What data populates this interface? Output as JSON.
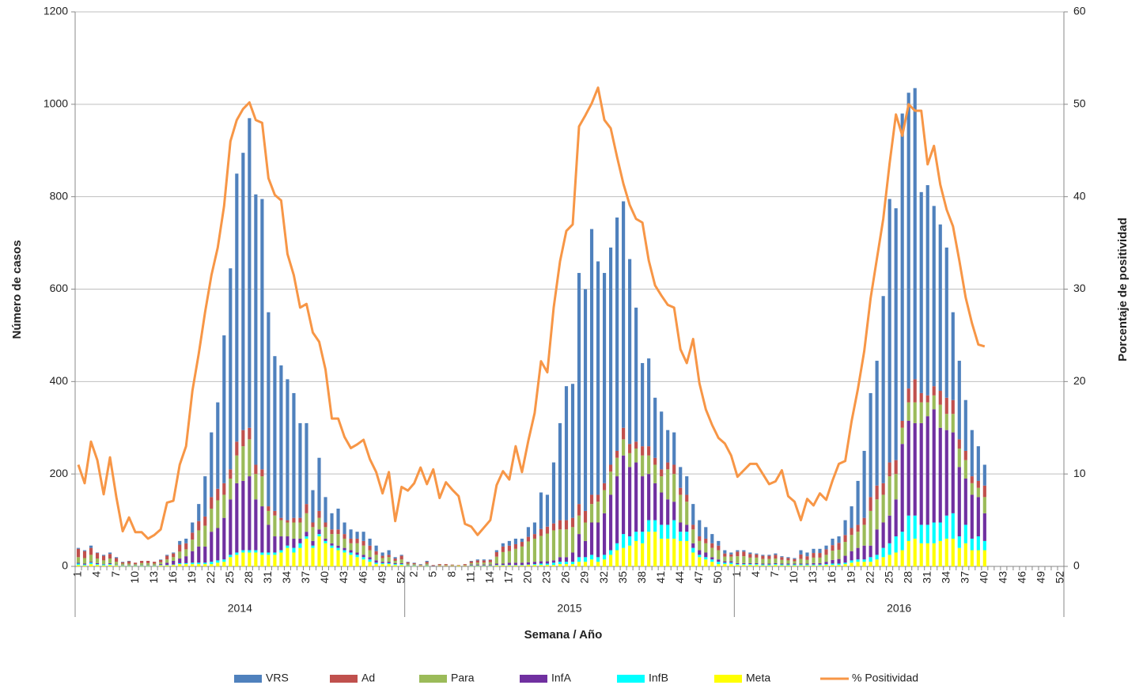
{
  "chart_data": {
    "type": "bar",
    "x_label": "Semana / Año",
    "y_label": "Número de casos",
    "y2_label": "Porcentaje de positividad",
    "ylim": [
      0,
      1200
    ],
    "yticks": [
      0,
      200,
      400,
      600,
      800,
      1000,
      1200
    ],
    "y2lim": [
      0,
      60
    ],
    "y2ticks": [
      0,
      10,
      20,
      30,
      40,
      50,
      60
    ],
    "grid": true,
    "legend": "bottom",
    "category_groups": [
      {
        "label": "2014",
        "count": 52
      },
      {
        "label": "2015",
        "count": 52
      },
      {
        "label": "2016",
        "count": 52
      }
    ],
    "categories": [
      "1",
      null,
      null,
      "4",
      null,
      null,
      "7",
      null,
      null,
      "10",
      null,
      null,
      "13",
      null,
      null,
      "16",
      null,
      null,
      "19",
      null,
      null,
      "22",
      null,
      null,
      "25",
      null,
      null,
      "28",
      null,
      null,
      "31",
      null,
      null,
      "34",
      null,
      null,
      "37",
      null,
      null,
      "40",
      null,
      null,
      "43",
      null,
      null,
      "46",
      null,
      null,
      "49",
      null,
      null,
      "52",
      null,
      "2",
      null,
      null,
      "5",
      null,
      null,
      "8",
      null,
      null,
      "11",
      null,
      null,
      "14",
      null,
      null,
      "17",
      null,
      null,
      "20",
      null,
      null,
      "23",
      null,
      null,
      "26",
      null,
      null,
      "29",
      null,
      null,
      "32",
      null,
      null,
      "35",
      null,
      null,
      "38",
      null,
      null,
      "41",
      null,
      null,
      "44",
      null,
      null,
      "47",
      null,
      null,
      "50",
      null,
      null,
      "1",
      null,
      null,
      "4",
      null,
      null,
      "7",
      null,
      null,
      "10",
      null,
      null,
      "13",
      null,
      null,
      "16",
      null,
      null,
      "19",
      null,
      null,
      "22",
      null,
      null,
      "25",
      null,
      null,
      "28",
      null,
      null,
      "31",
      null,
      null,
      "34",
      null,
      null,
      "37",
      null,
      null,
      "40",
      null,
      null,
      "43",
      null,
      null,
      "46",
      null,
      null,
      "49",
      null,
      null,
      "52"
    ],
    "series": [
      {
        "name": "VRS",
        "type": "bar",
        "color": "#4f81bd",
        "values": [
          2,
          2,
          5,
          1,
          2,
          3,
          2,
          1,
          1,
          0,
          0,
          0,
          0,
          1,
          2,
          2,
          8,
          10,
          22,
          37,
          87,
          140,
          187,
          320,
          435,
          580,
          600,
          670,
          585,
          585,
          420,
          335,
          330,
          305,
          270,
          205,
          175,
          70,
          115,
          55,
          35,
          45,
          25,
          20,
          15,
          20,
          15,
          12,
          7,
          10,
          3,
          2,
          1,
          1,
          1,
          2,
          0,
          0,
          0,
          0,
          0,
          0,
          1,
          2,
          2,
          1,
          4,
          7,
          10,
          12,
          7,
          21,
          25,
          79,
          69,
          132,
          210,
          290,
          290,
          500,
          480,
          575,
          505,
          455,
          470,
          505,
          490,
          400,
          290,
          180,
          190,
          130,
          125,
          70,
          70,
          45,
          40,
          45,
          35,
          25,
          20,
          10,
          7,
          4,
          3,
          3,
          3,
          2,
          2,
          2,
          3,
          2,
          2,
          2,
          9,
          8,
          9,
          9,
          8,
          14,
          14,
          32,
          47,
          95,
          145,
          225,
          270,
          405,
          570,
          545,
          665,
          640,
          630,
          435,
          455,
          390,
          360,
          325,
          190,
          170,
          110,
          100,
          75,
          45,
          null,
          null,
          null,
          null,
          null,
          null,
          null,
          null,
          null,
          null,
          null,
          null
        ]
      },
      {
        "name": "Ad",
        "type": "bar",
        "color": "#c0504d",
        "values": [
          18,
          15,
          15,
          12,
          10,
          10,
          8,
          3,
          5,
          3,
          5,
          5,
          4,
          5,
          8,
          8,
          15,
          13,
          15,
          20,
          20,
          25,
          25,
          25,
          20,
          30,
          35,
          25,
          20,
          15,
          10,
          10,
          5,
          5,
          10,
          10,
          20,
          10,
          15,
          10,
          10,
          10,
          10,
          10,
          10,
          10,
          10,
          8,
          5,
          5,
          5,
          8,
          3,
          2,
          1,
          4,
          1,
          2,
          2,
          1,
          1,
          2,
          4,
          5,
          5,
          5,
          10,
          12,
          12,
          10,
          10,
          10,
          10,
          15,
          15,
          15,
          20,
          20,
          20,
          25,
          25,
          20,
          15,
          15,
          15,
          15,
          25,
          20,
          15,
          20,
          20,
          15,
          15,
          15,
          20,
          15,
          15,
          10,
          10,
          10,
          10,
          10,
          7,
          5,
          10,
          10,
          8,
          7,
          7,
          7,
          8,
          6,
          5,
          5,
          10,
          8,
          10,
          10,
          12,
          12,
          15,
          15,
          15,
          15,
          15,
          30,
          30,
          25,
          30,
          30,
          15,
          30,
          50,
          20,
          15,
          20,
          30,
          35,
          30,
          20,
          20,
          15,
          15,
          25,
          null,
          null,
          null,
          null,
          null,
          null,
          null,
          null,
          null,
          null,
          null,
          null
        ]
      },
      {
        "name": "Para",
        "type": "bar",
        "color": "#9bbb59",
        "values": [
          12,
          12,
          15,
          10,
          8,
          10,
          6,
          3,
          3,
          2,
          4,
          4,
          3,
          4,
          7,
          8,
          15,
          15,
          25,
          35,
          45,
          50,
          60,
          50,
          45,
          60,
          75,
          80,
          55,
          65,
          30,
          45,
          35,
          30,
          35,
          35,
          40,
          30,
          25,
          25,
          20,
          25,
          20,
          15,
          20,
          20,
          15,
          12,
          8,
          10,
          5,
          8,
          3,
          2,
          1,
          3,
          1,
          1,
          1,
          1,
          1,
          1,
          3,
          4,
          4,
          5,
          15,
          25,
          25,
          30,
          35,
          45,
          50,
          55,
          60,
          65,
          60,
          60,
          55,
          40,
          40,
          40,
          45,
          50,
          50,
          40,
          35,
          30,
          30,
          45,
          40,
          40,
          35,
          65,
          60,
          60,
          50,
          30,
          20,
          20,
          20,
          20,
          10,
          10,
          15,
          15,
          12,
          12,
          10,
          10,
          10,
          8,
          7,
          5,
          10,
          8,
          12,
          12,
          15,
          20,
          20,
          30,
          35,
          35,
          45,
          75,
          65,
          60,
          85,
          55,
          35,
          40,
          45,
          45,
          30,
          30,
          50,
          35,
          40,
          40,
          40,
          25,
          20,
          35,
          null,
          null,
          null,
          null,
          null,
          null,
          null,
          null,
          null,
          null,
          null,
          null
        ]
      },
      {
        "name": "InfA",
        "type": "bar",
        "color": "#7030a0",
        "values": [
          2,
          2,
          2,
          2,
          1,
          2,
          1,
          1,
          1,
          1,
          1,
          1,
          1,
          2,
          5,
          8,
          10,
          15,
          25,
          35,
          35,
          65,
          70,
          90,
          120,
          150,
          150,
          160,
          110,
          100,
          60,
          35,
          30,
          20,
          20,
          10,
          10,
          10,
          10,
          5,
          5,
          5,
          5,
          5,
          5,
          5,
          5,
          5,
          3,
          3,
          2,
          2,
          1,
          1,
          1,
          1,
          1,
          1,
          1,
          1,
          0,
          1,
          2,
          2,
          2,
          2,
          3,
          3,
          5,
          5,
          5,
          5,
          5,
          5,
          5,
          5,
          10,
          10,
          20,
          50,
          35,
          70,
          75,
          90,
          120,
          145,
          170,
          150,
          150,
          120,
          100,
          80,
          70,
          55,
          40,
          20,
          15,
          10,
          10,
          10,
          5,
          5,
          3,
          3,
          2,
          2,
          2,
          2,
          2,
          2,
          2,
          2,
          2,
          2,
          2,
          2,
          3,
          3,
          5,
          8,
          10,
          15,
          20,
          25,
          30,
          25,
          55,
          55,
          60,
          80,
          190,
          205,
          200,
          220,
          235,
          245,
          205,
          185,
          175,
          150,
          100,
          95,
          85,
          60,
          null,
          null,
          null,
          null,
          null,
          null,
          null,
          null,
          null,
          null,
          null,
          null
        ]
      },
      {
        "name": "InfB",
        "type": "bar",
        "color": "#00ffff",
        "values": [
          3,
          2,
          3,
          2,
          2,
          2,
          1,
          1,
          1,
          1,
          1,
          1,
          1,
          1,
          1,
          1,
          2,
          2,
          3,
          3,
          3,
          5,
          5,
          5,
          5,
          5,
          5,
          5,
          5,
          5,
          5,
          5,
          5,
          5,
          10,
          10,
          5,
          5,
          5,
          5,
          5,
          5,
          5,
          5,
          5,
          5,
          5,
          3,
          2,
          2,
          2,
          2,
          1,
          1,
          0,
          1,
          0,
          0,
          0,
          0,
          0,
          0,
          1,
          1,
          1,
          1,
          1,
          1,
          1,
          1,
          1,
          1,
          2,
          3,
          3,
          5,
          5,
          5,
          5,
          10,
          10,
          10,
          10,
          10,
          10,
          15,
          30,
          20,
          20,
          25,
          25,
          25,
          30,
          30,
          40,
          20,
          20,
          10,
          5,
          5,
          5,
          5,
          3,
          3,
          2,
          2,
          2,
          2,
          2,
          2,
          2,
          2,
          2,
          2,
          2,
          2,
          2,
          2,
          2,
          3,
          3,
          3,
          5,
          5,
          5,
          10,
          10,
          20,
          25,
          35,
          40,
          55,
          50,
          40,
          40,
          45,
          40,
          50,
          55,
          25,
          40,
          25,
          30,
          20,
          null,
          null,
          null,
          null,
          null,
          null,
          null,
          null,
          null,
          null,
          null,
          null
        ]
      },
      {
        "name": "Meta",
        "type": "bar",
        "color": "#ffff00",
        "values": [
          3,
          2,
          5,
          3,
          2,
          3,
          2,
          1,
          1,
          1,
          1,
          1,
          1,
          2,
          2,
          3,
          5,
          5,
          5,
          5,
          5,
          5,
          8,
          10,
          20,
          25,
          30,
          30,
          30,
          25,
          25,
          25,
          30,
          40,
          30,
          40,
          60,
          40,
          65,
          50,
          40,
          35,
          30,
          25,
          20,
          15,
          10,
          5,
          5,
          5,
          3,
          3,
          1,
          1,
          1,
          1,
          0,
          1,
          1,
          1,
          1,
          1,
          1,
          1,
          1,
          1,
          2,
          2,
          2,
          2,
          2,
          3,
          3,
          3,
          3,
          3,
          5,
          5,
          5,
          10,
          10,
          15,
          10,
          15,
          25,
          35,
          40,
          45,
          55,
          50,
          75,
          75,
          60,
          60,
          60,
          55,
          55,
          30,
          20,
          15,
          10,
          5,
          5,
          5,
          3,
          3,
          3,
          3,
          2,
          2,
          3,
          2,
          2,
          2,
          2,
          2,
          2,
          2,
          3,
          3,
          3,
          5,
          8,
          10,
          10,
          10,
          15,
          20,
          25,
          30,
          35,
          55,
          60,
          50,
          50,
          50,
          55,
          60,
          60,
          40,
          50,
          35,
          35,
          35,
          null,
          null,
          null,
          null,
          null,
          null,
          null,
          null,
          null,
          null,
          null,
          null
        ]
      },
      {
        "name": "% Positividad",
        "type": "line",
        "axis": "y2",
        "color": "#f79646",
        "values": [
          11,
          9,
          13.5,
          11.5,
          7.8,
          11.8,
          7.5,
          3.8,
          5.3,
          3.7,
          3.7,
          3,
          3.4,
          4,
          6.9,
          7.1,
          11,
          13,
          19,
          23,
          27.5,
          31.5,
          34.5,
          39,
          46,
          48.3,
          49.5,
          50.2,
          48.3,
          48,
          42,
          40.2,
          39.6,
          33.8,
          31.5,
          28,
          28.4,
          25.3,
          24.3,
          21.3,
          16,
          16,
          14,
          12.8,
          13.2,
          13.7,
          11.6,
          10.2,
          7.9,
          10.2,
          4.9,
          8.6,
          8.2,
          9,
          10.7,
          8.9,
          10.5,
          7.4,
          9.1,
          8.3,
          7.6,
          4.6,
          4.3,
          3.4,
          4.2,
          5,
          8.8,
          10.3,
          9.4,
          13,
          10.2,
          13.6,
          16.6,
          22.2,
          21,
          28,
          33,
          36.3,
          37,
          47.6,
          48.8,
          50.1,
          51.8,
          48.3,
          47.4,
          44.3,
          41.4,
          39.1,
          37.6,
          37.2,
          33.1,
          30.4,
          29.3,
          28.3,
          28,
          23.5,
          22,
          24.6,
          19.8,
          17,
          15.3,
          13.9,
          13.3,
          12,
          9.7,
          10.4,
          11.1,
          11.1,
          10,
          8.9,
          9.2,
          10.4,
          7.6,
          7,
          5,
          7.3,
          6.6,
          7.9,
          7.2,
          9.3,
          11.1,
          11.4,
          15.7,
          19.2,
          23.3,
          29,
          33.3,
          37.6,
          43.6,
          48.9,
          46.6,
          50,
          49.3,
          49.3,
          43.5,
          45.5,
          41.3,
          38.6,
          36.8,
          33.1,
          29.1,
          26.3,
          24,
          23.8,
          null,
          null,
          null,
          null,
          null,
          null,
          null,
          null,
          null,
          null,
          null,
          null
        ]
      }
    ]
  }
}
